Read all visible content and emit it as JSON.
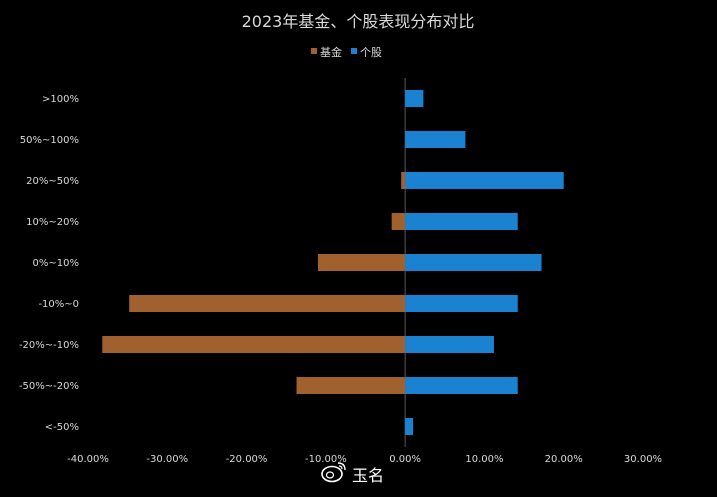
{
  "chart_data": {
    "type": "bar",
    "orientation": "horizontal",
    "title": "2023年基金、个股表现分布对比",
    "categories": [
      ">100%",
      "50%~100%",
      "20%~50%",
      "10%~20%",
      "0%~10%",
      "-10%~0",
      "-20%~-10%",
      "-50%~-20%",
      "<-50%"
    ],
    "series": [
      {
        "name": "基金",
        "color": "#a0612e",
        "values": [
          0,
          0,
          -0.5,
          -1.7,
          -11,
          -34.8,
          -38.2,
          -13.7,
          0
        ]
      },
      {
        "name": "个股",
        "color": "#1b82d1",
        "values": [
          2.3,
          7.6,
          20,
          14.2,
          17.2,
          14.2,
          11.2,
          14.2,
          1
        ]
      }
    ],
    "xlim": [
      -40,
      30
    ],
    "xticks": [
      -40,
      -30,
      -20,
      -10,
      0,
      10,
      20,
      30
    ],
    "xtick_labels": [
      "-40.00%",
      "-30.00%",
      "-20.00%",
      "-10.00%",
      "0.00%",
      "10.00%",
      "20.00%",
      "30.00%"
    ],
    "legend_position": "top-center",
    "grid": false
  },
  "watermark": {
    "icon": "weibo-icon",
    "text": "玉名"
  },
  "colors": {
    "background": "#000000",
    "text": "#d9d9d9",
    "zero_line": "#5a5a5a"
  }
}
